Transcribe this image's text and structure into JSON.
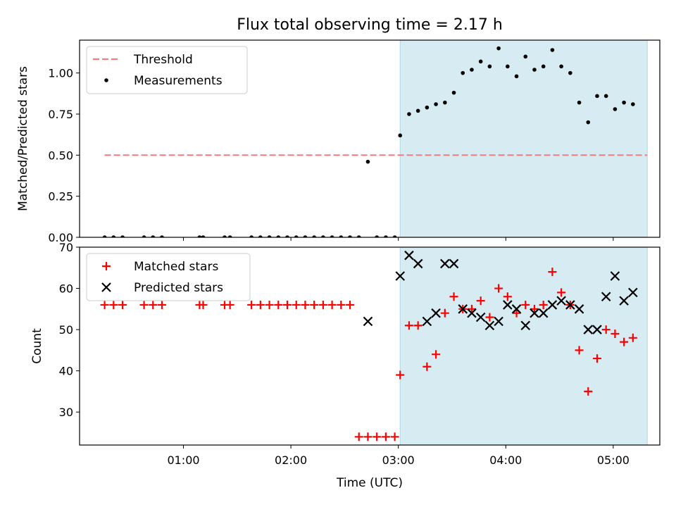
{
  "figure_title": "Flux total observing time = 2.17 h",
  "colors": {
    "threshold": "#f08080",
    "measurement": "#000000",
    "matched": "#ff0000",
    "predicted": "#000000",
    "span_fill": "#add8e6"
  },
  "chart_data": [
    {
      "type": "scatter",
      "title": "Flux total observing time = 2.17 h",
      "xlabel": "",
      "ylabel": "Matched/Predicted stars",
      "xlim": [
        "00:02",
        "05:26"
      ],
      "ylim": [
        0,
        1.2
      ],
      "yticks": [
        "0.00",
        "0.25",
        "0.50",
        "0.75",
        "1.00"
      ],
      "grid": false,
      "legend_position": "upper left",
      "highlight_span": [
        "03:01",
        "05:19"
      ],
      "series": [
        {
          "name": "Threshold",
          "style": "dashed-line",
          "x": [
            "00:16",
            "05:19"
          ],
          "y": [
            0.5,
            0.5
          ]
        },
        {
          "name": "Measurements",
          "style": "dot",
          "x": [
            "00:16",
            "00:21",
            "00:26",
            "00:38",
            "00:43",
            "00:48",
            "01:09",
            "01:11",
            "01:23",
            "01:26",
            "01:38",
            "01:43",
            "01:48",
            "01:53",
            "01:58",
            "02:03",
            "02:08",
            "02:13",
            "02:18",
            "02:23",
            "02:28",
            "02:33",
            "02:38",
            "02:43",
            "02:48",
            "02:53",
            "02:58",
            "03:01",
            "03:06",
            "03:11",
            "03:16",
            "03:21",
            "03:26",
            "03:31",
            "03:36",
            "03:41",
            "03:46",
            "03:51",
            "03:56",
            "04:01",
            "04:06",
            "04:11",
            "04:16",
            "04:21",
            "04:26",
            "04:31",
            "04:36",
            "04:41",
            "04:46",
            "04:51",
            "04:56",
            "05:01",
            "05:06",
            "05:11"
          ],
          "y": [
            0,
            0,
            0,
            0,
            0,
            0,
            0,
            0,
            0,
            0,
            0,
            0,
            0,
            0,
            0,
            0,
            0,
            0,
            0,
            0,
            0,
            0,
            0,
            0.46,
            0,
            0,
            0,
            0.62,
            0.75,
            0.77,
            0.79,
            0.81,
            0.82,
            0.88,
            1.0,
            1.02,
            1.07,
            1.04,
            1.15,
            1.04,
            0.98,
            1.1,
            1.02,
            1.04,
            1.14,
            1.04,
            1.0,
            0.82,
            0.7,
            0.86,
            0.86,
            0.78,
            0.82,
            0.81
          ]
        }
      ]
    },
    {
      "type": "scatter",
      "title": "",
      "xlabel": "Time (UTC)",
      "ylabel": "Count",
      "xlim": [
        "00:02",
        "05:26"
      ],
      "ylim": [
        22,
        70
      ],
      "yticks": [
        "30",
        "40",
        "50",
        "60",
        "70"
      ],
      "xticks": [
        "01:00",
        "02:00",
        "03:00",
        "04:00",
        "05:00"
      ],
      "grid": false,
      "legend_position": "upper left",
      "highlight_span": [
        "03:01",
        "05:19"
      ],
      "series": [
        {
          "name": "Matched stars",
          "style": "plus",
          "x": [
            "00:16",
            "00:21",
            "00:26",
            "00:38",
            "00:43",
            "00:48",
            "01:09",
            "01:11",
            "01:23",
            "01:26",
            "01:38",
            "01:43",
            "01:48",
            "01:53",
            "01:58",
            "02:03",
            "02:08",
            "02:13",
            "02:18",
            "02:23",
            "02:28",
            "02:33",
            "02:38",
            "02:43",
            "02:48",
            "02:53",
            "02:58",
            "03:01",
            "03:06",
            "03:11",
            "03:16",
            "03:21",
            "03:26",
            "03:31",
            "03:36",
            "03:41",
            "03:46",
            "03:51",
            "03:56",
            "04:01",
            "04:06",
            "04:11",
            "04:16",
            "04:21",
            "04:26",
            "04:31",
            "04:36",
            "04:41",
            "04:46",
            "04:51",
            "04:56",
            "05:01",
            "05:06",
            "05:11"
          ],
          "y": [
            56,
            56,
            56,
            56,
            56,
            56,
            56,
            56,
            56,
            56,
            56,
            56,
            56,
            56,
            56,
            56,
            56,
            56,
            56,
            56,
            56,
            56,
            24,
            24,
            24,
            24,
            24,
            39,
            51,
            51,
            41,
            44,
            54,
            58,
            55,
            55,
            57,
            53,
            60,
            58,
            54,
            56,
            55,
            56,
            64,
            59,
            56,
            45,
            35,
            43,
            50,
            49,
            47,
            48
          ]
        },
        {
          "name": "Predicted stars",
          "style": "x",
          "x": [
            "02:43",
            "03:01",
            "03:06",
            "03:11",
            "03:16",
            "03:21",
            "03:26",
            "03:31",
            "03:36",
            "03:41",
            "03:46",
            "03:51",
            "03:56",
            "04:01",
            "04:06",
            "04:11",
            "04:16",
            "04:21",
            "04:26",
            "04:31",
            "04:36",
            "04:41",
            "04:46",
            "04:51",
            "04:56",
            "05:01",
            "05:06",
            "05:11"
          ],
          "y": [
            52,
            63,
            68,
            66,
            52,
            54,
            66,
            66,
            55,
            54,
            53,
            51,
            52,
            56,
            55,
            51,
            54,
            54,
            56,
            57,
            56,
            55,
            50,
            50,
            58,
            63,
            57,
            59
          ]
        }
      ]
    }
  ]
}
